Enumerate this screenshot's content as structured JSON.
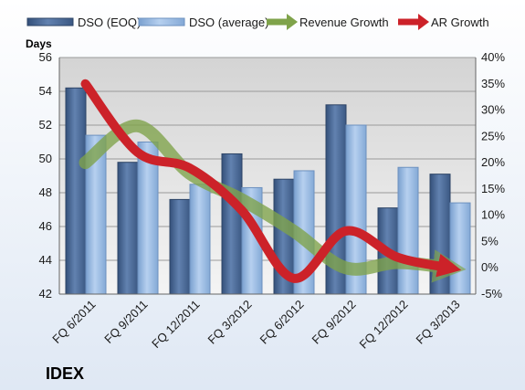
{
  "chart_data": {
    "type": "bar",
    "ticker": "IDEX",
    "left_axis_label": "Days",
    "categories": [
      "FQ 6/2011",
      "FQ 9/2011",
      "FQ 12/2011",
      "FQ 3/2012",
      "FQ 6/2012",
      "FQ 9/2012",
      "FQ 12/2012",
      "FQ 3/2013"
    ],
    "left_axis": {
      "min": 42,
      "max": 56,
      "ticks": [
        42,
        44,
        46,
        48,
        50,
        52,
        54,
        56
      ]
    },
    "right_axis": {
      "min": -5,
      "max": 40,
      "ticks": [
        "-5%",
        "0%",
        "5%",
        "10%",
        "15%",
        "20%",
        "25%",
        "30%",
        "35%",
        "40%"
      ]
    },
    "series": [
      {
        "name": "DSO (EOQ)",
        "kind": "bar",
        "color": "#4a6a94",
        "values": [
          54.2,
          49.8,
          47.6,
          50.3,
          48.8,
          53.2,
          47.1,
          49.1
        ]
      },
      {
        "name": "DSO (average)",
        "kind": "bar",
        "color": "#8fb2dc",
        "values": [
          51.4,
          51.0,
          48.5,
          48.3,
          49.3,
          52.0,
          49.5,
          47.4
        ]
      },
      {
        "name": "Revenue Growth",
        "kind": "line",
        "axis": "right",
        "color": "#7fa34a",
        "values": [
          20,
          27,
          18,
          13,
          7,
          0,
          1,
          0
        ]
      },
      {
        "name": "AR Growth",
        "kind": "line",
        "axis": "right",
        "color": "#cc2229",
        "values": [
          35,
          22,
          19,
          11,
          -2,
          7,
          2,
          0
        ]
      }
    ],
    "legend_position": "top",
    "grid": true
  }
}
